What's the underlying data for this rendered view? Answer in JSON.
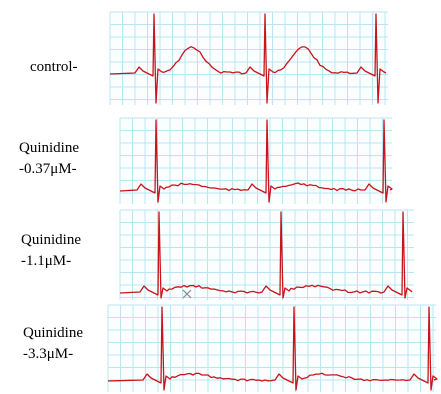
{
  "colors": {
    "grid": "#b9e6f2",
    "grid_bg": "#fbfeff",
    "trace": "#c8141c",
    "cursor": "#7a8a8a"
  },
  "chart_data": {
    "type": "line",
    "panels": [
      {
        "label": "control-",
        "beats": 3,
        "t_wave": "tall"
      },
      {
        "label": "Quinidine\n-0.37μM-",
        "beats": 3,
        "t_wave": "flat"
      },
      {
        "label": "Quinidine\n-1.1μM-",
        "beats": 3,
        "t_wave": "flat"
      },
      {
        "label": "Quinidine\n-3.3μM-",
        "beats": 3,
        "t_wave": "flat"
      }
    ]
  }
}
